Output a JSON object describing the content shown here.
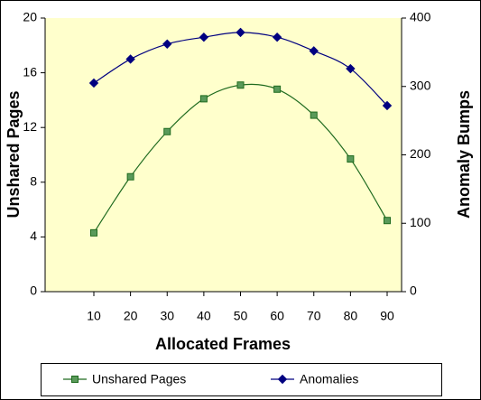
{
  "chart_data": {
    "type": "line",
    "xlabel": "Allocated Frames",
    "ylabel": "Unshared Pages",
    "y2label": "Anomaly Bumps",
    "categories": [
      "10",
      "20",
      "30",
      "40",
      "50",
      "60",
      "70",
      "80",
      "90"
    ],
    "series": [
      {
        "name": "Unshared Pages",
        "color": "#1f6b1f",
        "marker": "square",
        "values": [
          4.3,
          8.4,
          11.7,
          14.1,
          15.1,
          14.8,
          12.9,
          9.7,
          5.2
        ]
      },
      {
        "name": "Anomalies",
        "color": "#000080",
        "marker": "diamond",
        "axis": "y2",
        "values": [
          305,
          340,
          362,
          372,
          379,
          372,
          352,
          326,
          272
        ]
      }
    ],
    "ylim": [
      0,
      20
    ],
    "yticks": [
      0,
      4,
      8,
      12,
      16,
      20
    ],
    "y2lim": [
      0,
      400
    ],
    "y2ticks": [
      0,
      100,
      200,
      300,
      400
    ],
    "legend": "bottom"
  }
}
